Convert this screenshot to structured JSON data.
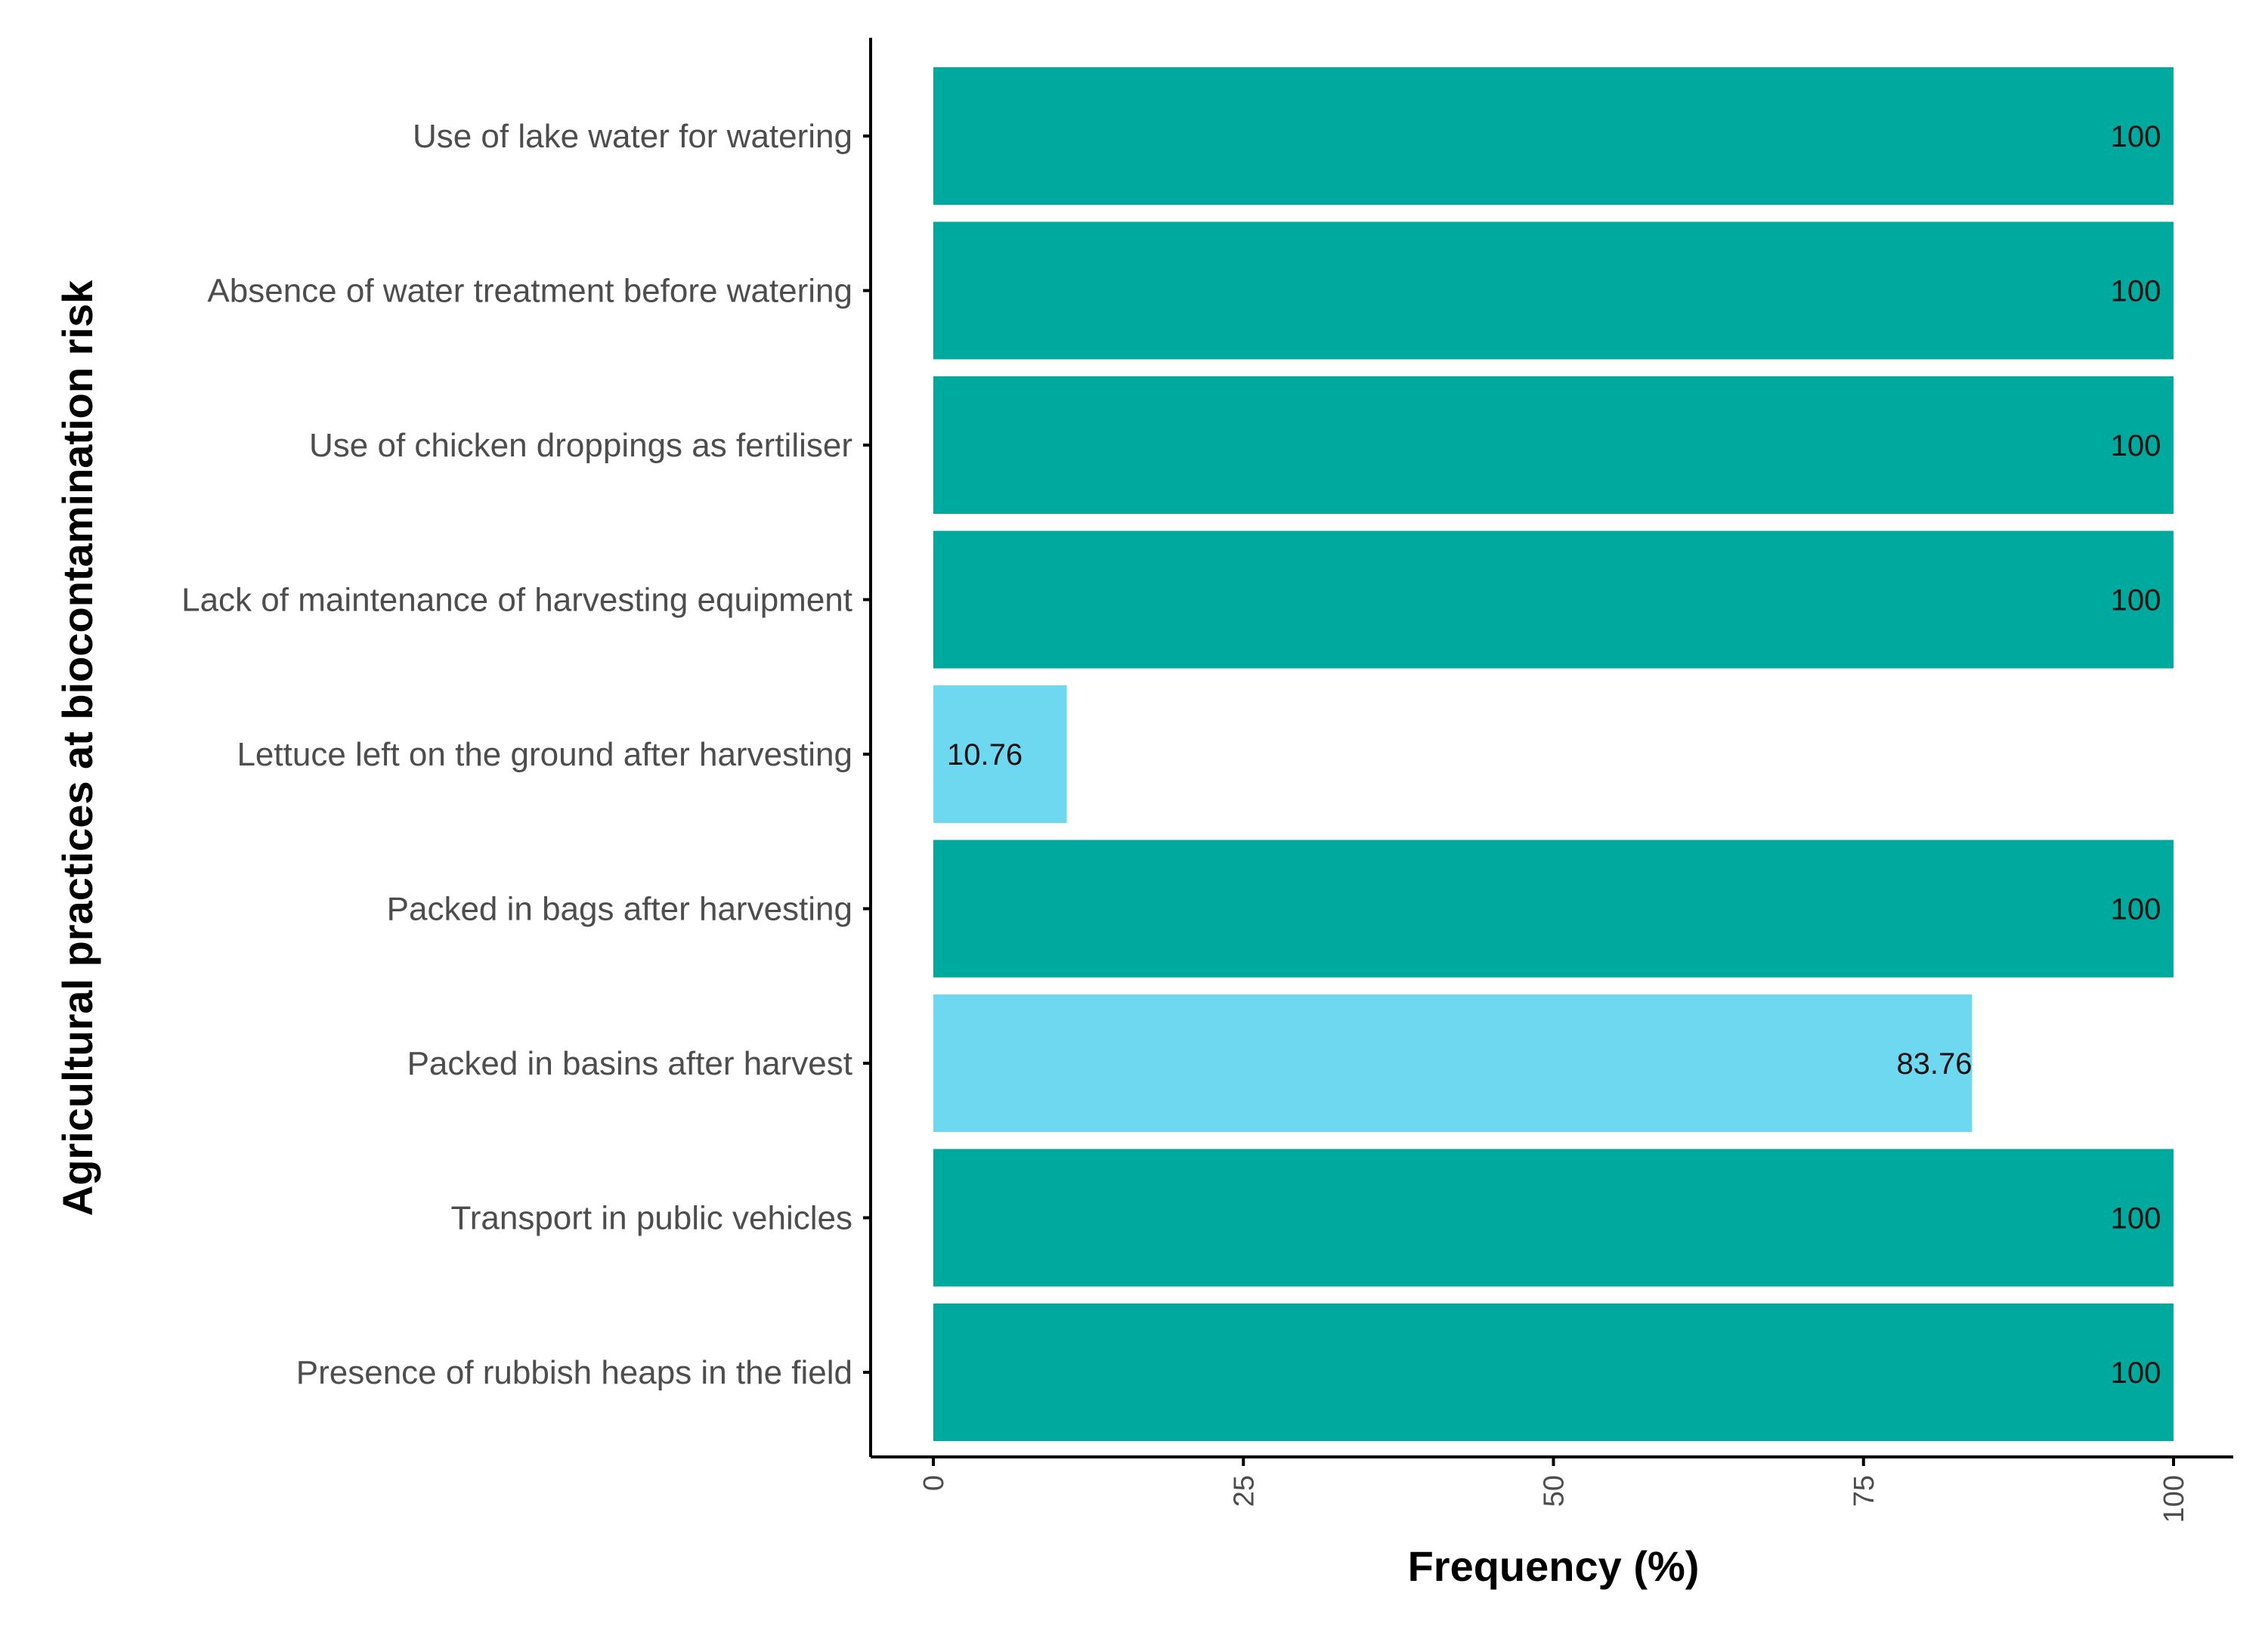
{
  "chart_data": {
    "type": "bar",
    "orientation": "horizontal",
    "title": "",
    "xlabel": "Frequency (%)",
    "ylabel": "Agricultural practices at biocontamination risk",
    "xlim": [
      0,
      100
    ],
    "xticks": [
      0,
      25,
      50,
      75,
      100
    ],
    "grid": false,
    "categories": [
      "Use of lake water for watering",
      "Absence of water treatment before watering",
      "Use of chicken droppings as fertiliser",
      "Lack of maintenance of harvesting equipment",
      "Lettuce left on the ground after harvesting",
      "Packed in bags after harvesting",
      "Packed in basins after harvest",
      "Transport in public vehicles",
      "Presence of rubbish heaps in the field"
    ],
    "values": [
      100,
      100,
      100,
      100,
      10.76,
      100,
      83.76,
      100,
      100
    ],
    "value_labels": [
      "100",
      "100",
      "100",
      "100",
      "10.76",
      "100",
      "83.76",
      "100",
      "100"
    ],
    "colors": {
      "full": "#00a99d",
      "partial": "#6dd8f0",
      "axis": "#000000"
    }
  }
}
